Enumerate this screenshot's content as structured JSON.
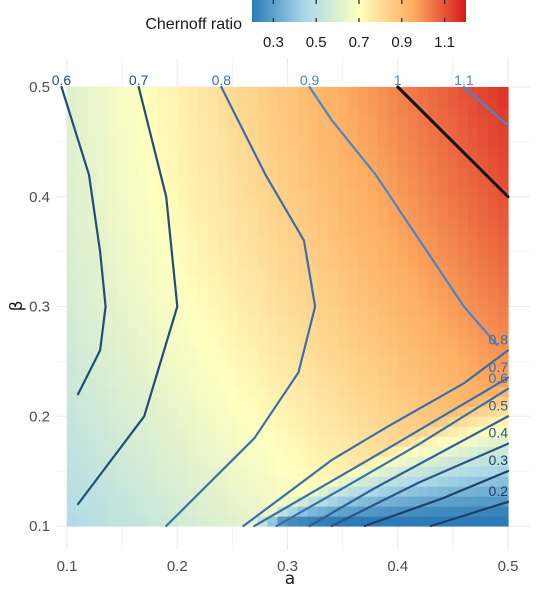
{
  "chart_data": {
    "type": "heatmap",
    "title": "",
    "xlabel": "a",
    "ylabel": "β",
    "xlim": [
      0.1,
      0.5
    ],
    "ylim": [
      0.1,
      0.5
    ],
    "x_ticks": [
      "0.1",
      "0.2",
      "0.3",
      "0.4",
      "0.5"
    ],
    "y_ticks": [
      "0.1",
      "0.2",
      "0.3",
      "0.4",
      "0.5"
    ],
    "grid": true,
    "colorbar": {
      "title": "Chernoff ratio",
      "placement": "top",
      "range": [
        0.2,
        1.2
      ],
      "ticks": [
        "0.3",
        "0.5",
        "0.7",
        "0.9",
        "1.1"
      ],
      "colors": [
        "#2c7bb6",
        "#abd9e9",
        "#ffffbf",
        "#fdae61",
        "#d7191c"
      ]
    },
    "contours": [
      {
        "level": "0.6",
        "color": "#1f4e79",
        "points": [
          [
            0.11,
            0.22
          ],
          [
            0.13,
            0.26
          ],
          [
            0.135,
            0.3
          ],
          [
            0.13,
            0.35
          ],
          [
            0.12,
            0.42
          ],
          [
            0.095,
            0.5
          ]
        ]
      },
      {
        "level": "0.7",
        "color": "#1f4e79",
        "points": [
          [
            0.11,
            0.12
          ],
          [
            0.17,
            0.2
          ],
          [
            0.2,
            0.3
          ],
          [
            0.19,
            0.4
          ],
          [
            0.165,
            0.5
          ]
        ]
      },
      {
        "level": "0.8",
        "color": "#3a6fa8",
        "points": [
          [
            0.19,
            0.1
          ],
          [
            0.27,
            0.18
          ],
          [
            0.31,
            0.24
          ],
          [
            0.325,
            0.3
          ],
          [
            0.315,
            0.36
          ],
          [
            0.28,
            0.42
          ],
          [
            0.24,
            0.5
          ]
        ]
      },
      {
        "level": "0.9",
        "color": "#4a86c8",
        "points": [
          [
            0.49,
            0.265
          ],
          [
            0.46,
            0.3
          ],
          [
            0.42,
            0.36
          ],
          [
            0.38,
            0.42
          ],
          [
            0.34,
            0.47
          ],
          [
            0.32,
            0.5
          ]
        ]
      },
      {
        "level": "1",
        "color": "#111111",
        "points": [
          [
            0.4,
            0.5
          ],
          [
            0.5,
            0.4
          ]
        ]
      },
      {
        "level": "1.1",
        "color": "#4a86c8",
        "points": [
          [
            0.46,
            0.5
          ],
          [
            0.5,
            0.465
          ]
        ]
      },
      {
        "level": "0.8",
        "color": "#3a6fa8",
        "points": [
          [
            0.26,
            0.1
          ],
          [
            0.3,
            0.13
          ],
          [
            0.34,
            0.16
          ],
          [
            0.39,
            0.19
          ],
          [
            0.46,
            0.23
          ],
          [
            0.5,
            0.26
          ]
        ]
      },
      {
        "level": "0.7",
        "color": "#3a6fa8",
        "points": [
          [
            0.27,
            0.1
          ],
          [
            0.33,
            0.135
          ],
          [
            0.39,
            0.17
          ],
          [
            0.5,
            0.235
          ]
        ]
      },
      {
        "level": "0.6",
        "color": "#3a6fa8",
        "points": [
          [
            0.29,
            0.1
          ],
          [
            0.36,
            0.14
          ],
          [
            0.42,
            0.175
          ],
          [
            0.5,
            0.225
          ]
        ]
      },
      {
        "level": "0.5",
        "color": "#2f5f94",
        "points": [
          [
            0.32,
            0.1
          ],
          [
            0.38,
            0.135
          ],
          [
            0.5,
            0.2
          ]
        ]
      },
      {
        "level": "0.4",
        "color": "#2a5585",
        "points": [
          [
            0.34,
            0.1
          ],
          [
            0.42,
            0.14
          ],
          [
            0.5,
            0.175
          ]
        ]
      },
      {
        "level": "0.3",
        "color": "#1f3f66",
        "points": [
          [
            0.37,
            0.1
          ],
          [
            0.44,
            0.125
          ],
          [
            0.5,
            0.15
          ]
        ]
      },
      {
        "level": "0.2",
        "color": "#1f3f66",
        "points": [
          [
            0.43,
            0.1
          ],
          [
            0.5,
            0.122
          ]
        ]
      }
    ]
  }
}
